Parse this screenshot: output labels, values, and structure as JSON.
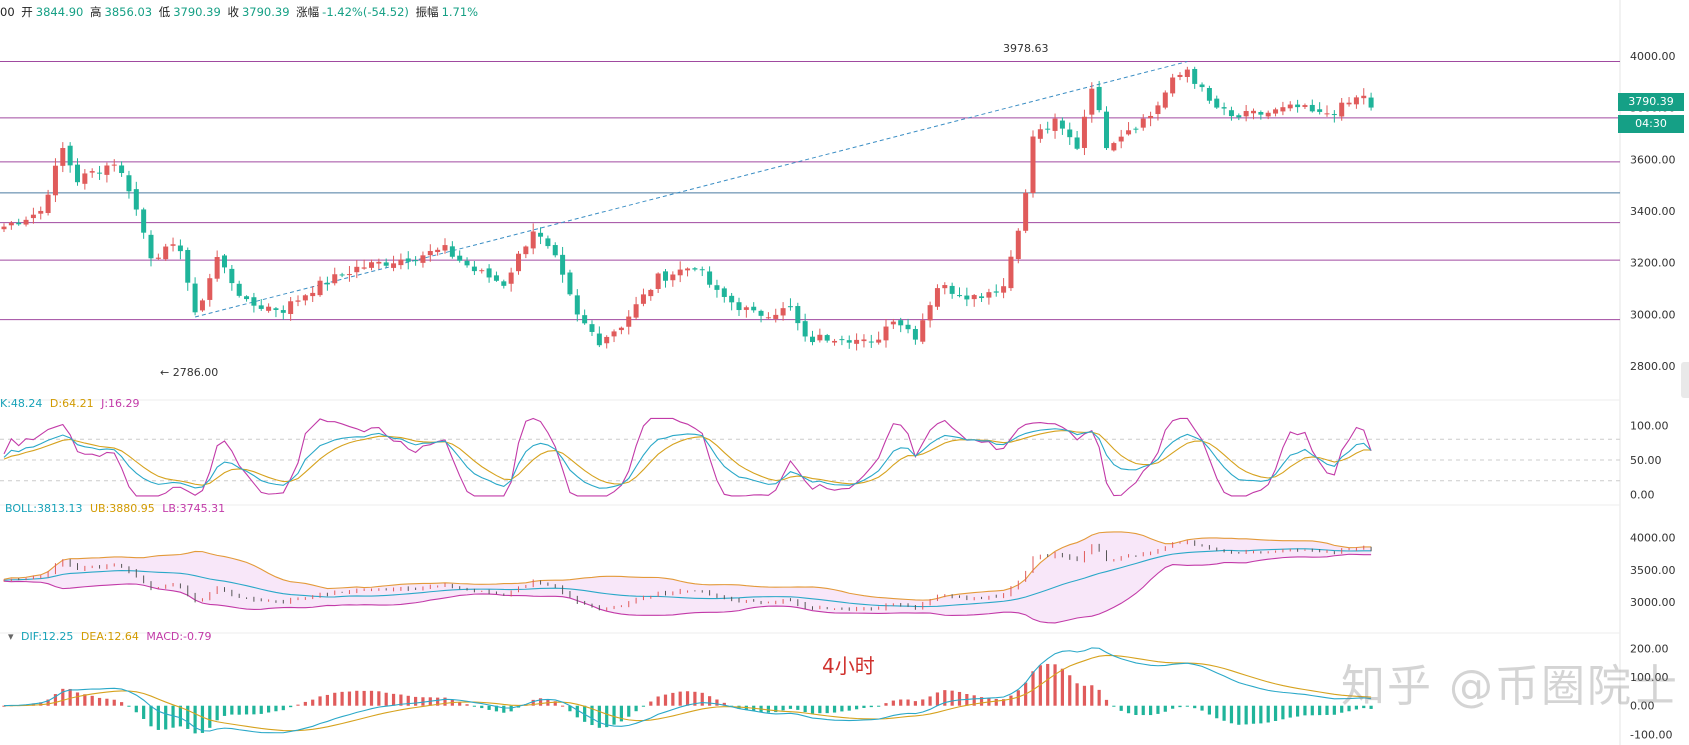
{
  "header": {
    "time_prefix": "00",
    "open_label": "开",
    "open": "3844.90",
    "high_label": "高",
    "high": "3856.03",
    "low_label": "低",
    "low": "3790.39",
    "close_label": "收",
    "close": "3790.39",
    "change_label": "涨幅",
    "change": "-1.42%(-54.52)",
    "amp_label": "振幅",
    "amp": "1.71%"
  },
  "price_tag": {
    "price": "3790.39",
    "countdown": "04:30"
  },
  "annotations": {
    "high": "3978.63",
    "low": "← 2786.00"
  },
  "timeframe_label": "4小时",
  "watermark": "知乎 @币圈院士",
  "indicators": {
    "kdj": {
      "k": "K:48.24",
      "d": "D:64.21",
      "j": "J:16.29"
    },
    "boll": {
      "mid": "BOLL:3813.13",
      "ub": "UB:3880.95",
      "lb": "LB:3745.31"
    },
    "macd": {
      "dif": "DIF:12.25",
      "dea": "DEA:12.64",
      "macd": "MACD:-0.79"
    }
  },
  "colors": {
    "up": "#e05b5b",
    "down": "#1fb49a",
    "hline": "#a04aa0",
    "hline_blue": "#4a7aa0",
    "tag": "#15a086"
  },
  "chart_data": [
    {
      "type": "candlestick",
      "ylim": [
        2700,
        4100
      ],
      "y_ticks": [
        "4000.00",
        "3800.00",
        "3600.00",
        "3400.00",
        "3200.00",
        "3000.00",
        "2800.00"
      ],
      "horizontal_levels": [
        3978,
        3760,
        3590,
        3470,
        3355,
        3210,
        2980
      ],
      "anchors_close": [
        [
          0,
          3340
        ],
        [
          5,
          3400
        ],
        [
          8,
          3640
        ],
        [
          10,
          3520
        ],
        [
          15,
          3590
        ],
        [
          17,
          3490
        ],
        [
          20,
          3230
        ],
        [
          24,
          3260
        ],
        [
          26,
          2990
        ],
        [
          29,
          3220
        ],
        [
          33,
          3040
        ],
        [
          38,
          3020
        ],
        [
          42,
          3100
        ],
        [
          48,
          3180
        ],
        [
          55,
          3220
        ],
        [
          60,
          3250
        ],
        [
          64,
          3170
        ],
        [
          68,
          3120
        ],
        [
          72,
          3330
        ],
        [
          75,
          3210
        ],
        [
          78,
          2990
        ],
        [
          81,
          2900
        ],
        [
          84,
          2960
        ],
        [
          89,
          3140
        ],
        [
          94,
          3190
        ],
        [
          97,
          3080
        ],
        [
          102,
          3000
        ],
        [
          107,
          3020
        ],
        [
          109,
          2900
        ],
        [
          114,
          2920
        ],
        [
          118,
          2880
        ],
        [
          121,
          2990
        ],
        [
          124,
          2920
        ],
        [
          127,
          3110
        ],
        [
          132,
          3070
        ],
        [
          136,
          3110
        ],
        [
          139,
          3460
        ],
        [
          140,
          3690
        ],
        [
          143,
          3740
        ],
        [
          146,
          3650
        ],
        [
          148,
          3890
        ],
        [
          150,
          3660
        ],
        [
          153,
          3720
        ],
        [
          156,
          3770
        ],
        [
          159,
          3900
        ],
        [
          161,
          3950
        ],
        [
          164,
          3820
        ],
        [
          167,
          3760
        ],
        [
          172,
          3780
        ],
        [
          176,
          3800
        ],
        [
          179,
          3770
        ],
        [
          182,
          3800
        ],
        [
          185,
          3850
        ],
        [
          186,
          3790
        ]
      ]
    },
    {
      "type": "line",
      "name": "KDJ",
      "ylim": [
        -5,
        115
      ],
      "y_ticks": [
        "100.00",
        "50.00",
        "0.00"
      ]
    },
    {
      "type": "band",
      "name": "BOLL",
      "ylim": [
        2600,
        4350
      ],
      "y_ticks": [
        "4000.00",
        "3500.00",
        "3000.00"
      ]
    },
    {
      "type": "bar",
      "name": "MACD",
      "ylim": [
        -120,
        230
      ],
      "y_ticks": [
        "200.00",
        "100.00",
        "0.00",
        "-100.00"
      ]
    }
  ]
}
